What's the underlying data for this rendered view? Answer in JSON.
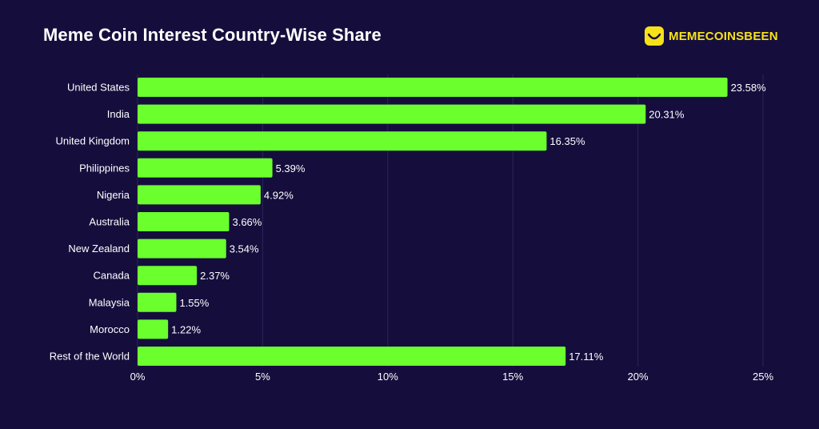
{
  "header": {
    "title": "Meme Coin Interest Country-Wise Share"
  },
  "brand": {
    "name": "MEMECOINSBEEN",
    "icon": "smiley-face-icon",
    "color": "#f7e21a"
  },
  "colors": {
    "background": "#150e3d",
    "bar": "#6bff2e",
    "text": "#ffffff",
    "grid": "#2b2458"
  },
  "chart_data": {
    "type": "bar",
    "orientation": "horizontal",
    "categories": [
      "United States",
      "India",
      "United Kingdom",
      "Philippines",
      "Nigeria",
      "Australia",
      "New Zealand",
      "Canada",
      "Malaysia",
      "Morocco",
      "Rest of the World"
    ],
    "values": [
      23.58,
      20.31,
      16.35,
      5.39,
      4.92,
      3.66,
      3.54,
      2.37,
      1.55,
      1.22,
      17.11
    ],
    "value_labels": [
      "23.58%",
      "20.31%",
      "16.35%",
      "5.39%",
      "4.92%",
      "3.66%",
      "3.54%",
      "2.37%",
      "1.55%",
      "1.22%",
      "17.11%"
    ],
    "xlim": [
      0,
      25
    ],
    "xticks": [
      0,
      5,
      10,
      15,
      20,
      25
    ],
    "xtick_labels": [
      "0%",
      "5%",
      "10%",
      "15%",
      "20%",
      "25%"
    ],
    "grid": true,
    "legend": "none"
  }
}
